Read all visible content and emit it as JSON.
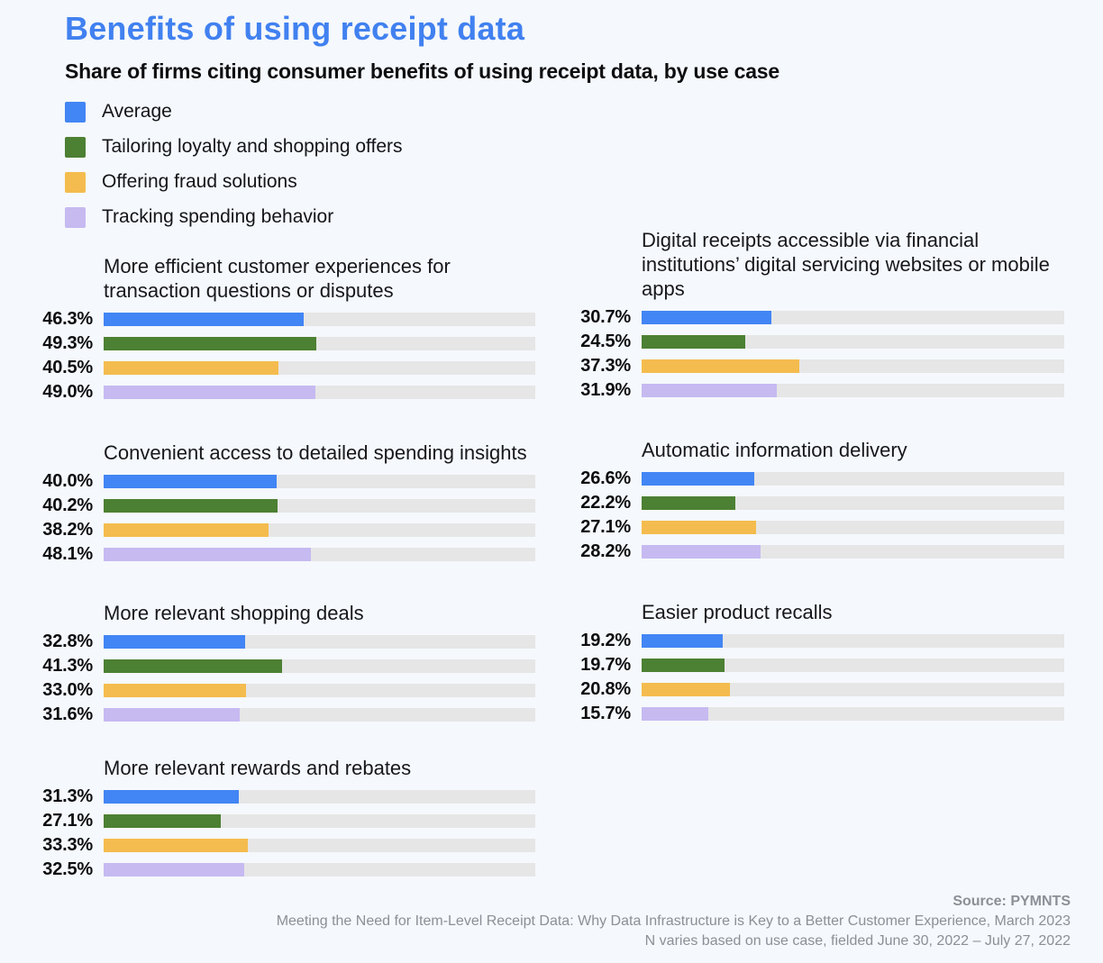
{
  "page": {
    "title": "Benefits of using receipt data",
    "subtitle": "Share of firms citing consumer benefits of using receipt data, by use case",
    "background_color": "#f5f8fc",
    "title_color": "#4181f0"
  },
  "chart_data": {
    "type": "bar",
    "orientation": "horizontal",
    "unit": "%",
    "value_axis_max": 100,
    "grid": false,
    "legend_position": "top-left",
    "track_color": "#e6e6e6",
    "series": [
      {
        "name": "Average",
        "color": "#4285f4"
      },
      {
        "name": "Tailoring loyalty and shopping offers",
        "color": "#4c8033"
      },
      {
        "name": "Offering fraud solutions",
        "color": "#f4bc4e"
      },
      {
        "name": "Tracking spending behavior",
        "color": "#c6baf1"
      }
    ],
    "groups": [
      {
        "column": "left",
        "title": "More efficient customer experiences for transaction questions or disputes",
        "values": [
          46.3,
          49.3,
          40.5,
          49.0
        ],
        "labels": [
          "46.3%",
          "49.3%",
          "40.5%",
          "49.0%"
        ]
      },
      {
        "column": "left",
        "title": "Convenient access to detailed spending insights",
        "values": [
          40.0,
          40.2,
          38.2,
          48.1
        ],
        "labels": [
          "40.0%",
          "40.2%",
          "38.2%",
          "48.1%"
        ]
      },
      {
        "column": "left",
        "title": "More relevant shopping deals",
        "values": [
          32.8,
          41.3,
          33.0,
          31.6
        ],
        "labels": [
          "32.8%",
          "41.3%",
          "33.0%",
          "31.6%"
        ]
      },
      {
        "column": "left",
        "title": "More relevant rewards and rebates",
        "values": [
          31.3,
          27.1,
          33.3,
          32.5
        ],
        "labels": [
          "31.3%",
          "27.1%",
          "33.3%",
          "32.5%"
        ]
      },
      {
        "column": "right",
        "title": "Digital receipts accessible via financial institutions’ digital servicing websites or mobile apps",
        "values": [
          30.7,
          24.5,
          37.3,
          31.9
        ],
        "labels": [
          "30.7%",
          "24.5%",
          "37.3%",
          "31.9%"
        ]
      },
      {
        "column": "right",
        "title": "Automatic information delivery",
        "values": [
          26.6,
          22.2,
          27.1,
          28.2
        ],
        "labels": [
          "26.6%",
          "22.2%",
          "27.1%",
          "28.2%"
        ]
      },
      {
        "column": "right",
        "title": "Easier product recalls",
        "values": [
          19.2,
          19.7,
          20.8,
          15.7
        ],
        "labels": [
          "19.2%",
          "19.7%",
          "20.8%",
          "15.7%"
        ]
      }
    ]
  },
  "footer": {
    "source": "Source: PYMNTS",
    "line1": "Meeting the Need for Item-Level Receipt Data: Why Data Infrastructure is Key to a Better Customer Experience, March 2023",
    "line2": "N varies based on use case, fielded June 30, 2022 – July 27, 2022"
  }
}
